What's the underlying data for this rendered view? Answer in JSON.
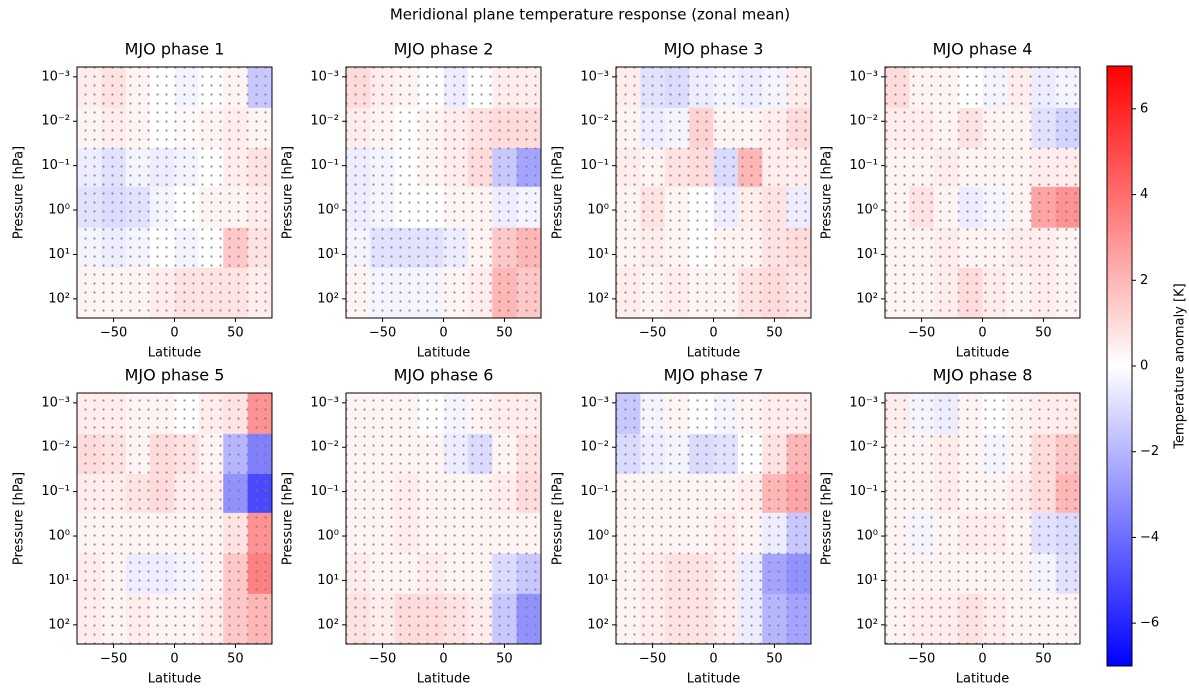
{
  "title": "Meridional plane temperature response (zonal mean)",
  "colorbar": {
    "label": "Temperature anomaly [K]",
    "lim": [
      -7,
      7
    ],
    "ticks": [
      {
        "value": -6,
        "label": "−6"
      },
      {
        "value": -4,
        "label": "−4"
      },
      {
        "value": -2,
        "label": "−2"
      },
      0,
      2,
      4,
      6
    ]
  },
  "chart_data": [
    {
      "type": "heatmap",
      "title": "MJO phase 1",
      "xlabel": "Latitude",
      "ylabel": "Pressure [hPa]",
      "x": [
        -80,
        -60,
        -40,
        -20,
        0,
        20,
        40,
        60,
        80
      ],
      "y": [
        0.0006,
        0.005,
        0.04,
        0.3,
        2.5,
        20,
        270
      ],
      "log_y": true,
      "y_inverted": true,
      "xlim": [
        -80,
        80
      ],
      "ylim": [
        0.0006,
        270
      ],
      "xticks": [
        {
          "value": -50,
          "label": "−50"
        },
        0,
        50
      ],
      "yticks": [
        {
          "value": 0.001,
          "label": "10⁻³"
        },
        {
          "value": 0.01,
          "label": "10⁻²"
        },
        {
          "value": 0.1,
          "label": "10⁻¹"
        },
        {
          "value": 1,
          "label": "10⁰"
        },
        {
          "value": 10,
          "label": "10¹"
        },
        {
          "value": 100,
          "label": "10²"
        }
      ],
      "values": [
        [
          0.5,
          0.8,
          0.3,
          0,
          -0.3,
          0,
          0.3,
          -1.5
        ],
        [
          0.3,
          0.5,
          0.3,
          0,
          0.2,
          0.3,
          0.5,
          0.3
        ],
        [
          -0.5,
          -0.8,
          -0.3,
          -0.5,
          -0.3,
          0,
          0.5,
          0.8
        ],
        [
          -0.8,
          -1,
          -0.8,
          -0.3,
          0,
          0.3,
          0.3,
          0.5
        ],
        [
          -0.3,
          -0.5,
          -0.3,
          0,
          -0.3,
          0,
          1.5,
          0.8
        ],
        [
          0.3,
          0.3,
          0.3,
          0.5,
          0.8,
          0.8,
          0.8,
          0.5
        ]
      ]
    },
    {
      "type": "heatmap",
      "title": "MJO phase 2",
      "xlabel": "Latitude",
      "ylabel": "Pressure [hPa]",
      "x": [
        -80,
        -60,
        -40,
        -20,
        0,
        20,
        40,
        60,
        80
      ],
      "y": [
        0.0006,
        0.005,
        0.04,
        0.3,
        2.5,
        20,
        270
      ],
      "log_y": true,
      "y_inverted": true,
      "xlim": [
        -80,
        80
      ],
      "ylim": [
        0.0006,
        270
      ],
      "xticks": [
        {
          "value": -50,
          "label": "−50"
        },
        0,
        50
      ],
      "yticks": [
        {
          "value": 0.001,
          "label": "10⁻³"
        },
        {
          "value": 0.01,
          "label": "10⁻²"
        },
        {
          "value": 0.1,
          "label": "10⁻¹"
        },
        {
          "value": 1,
          "label": "10⁰"
        },
        {
          "value": 10,
          "label": "10¹"
        },
        {
          "value": 100,
          "label": "10²"
        }
      ],
      "values": [
        [
          1,
          0.5,
          0.3,
          0,
          -0.5,
          0,
          0.5,
          0.5
        ],
        [
          0.5,
          0.3,
          0,
          0.3,
          0.5,
          0.8,
          1,
          1
        ],
        [
          -0.5,
          -0.3,
          0,
          0.3,
          0.5,
          1,
          -1.5,
          -2.5
        ],
        [
          -0.5,
          -0.3,
          0,
          0,
          0.3,
          0.3,
          -0.5,
          -0.3
        ],
        [
          -0.3,
          -0.8,
          -0.8,
          -0.8,
          -0.5,
          0.3,
          1.5,
          2
        ],
        [
          0.3,
          -0.3,
          -0.3,
          -0.3,
          0.3,
          0.5,
          2,
          1.5
        ]
      ]
    },
    {
      "type": "heatmap",
      "title": "MJO phase 3",
      "xlabel": "Latitude",
      "ylabel": "Pressure [hPa]",
      "x": [
        -80,
        -60,
        -40,
        -20,
        0,
        20,
        40,
        60,
        80
      ],
      "y": [
        0.0006,
        0.005,
        0.04,
        0.3,
        2.5,
        20,
        270
      ],
      "log_y": true,
      "y_inverted": true,
      "xlim": [
        -80,
        80
      ],
      "ylim": [
        0.0006,
        270
      ],
      "xticks": [
        {
          "value": -50,
          "label": "−50"
        },
        0,
        50
      ],
      "yticks": [
        {
          "value": 0.001,
          "label": "10⁻³"
        },
        {
          "value": 0.01,
          "label": "10⁻²"
        },
        {
          "value": 0.1,
          "label": "10⁻¹"
        },
        {
          "value": 1,
          "label": "10⁰"
        },
        {
          "value": 10,
          "label": "10¹"
        },
        {
          "value": 100,
          "label": "10²"
        }
      ],
      "values": [
        [
          0.5,
          -0.8,
          -1,
          -0.5,
          -0.3,
          -0.5,
          -0.3,
          0.5
        ],
        [
          0.3,
          -0.5,
          -0.3,
          1.2,
          0.3,
          0.3,
          0.5,
          1
        ],
        [
          0.5,
          0.3,
          0.8,
          1,
          -1,
          2,
          0.5,
          0.5
        ],
        [
          0.3,
          0.8,
          0.3,
          0,
          -0.5,
          0.5,
          0.8,
          -0.5
        ],
        [
          0.3,
          0.5,
          0.3,
          0,
          0.3,
          0.3,
          0.8,
          1
        ],
        [
          0.5,
          0.3,
          0.5,
          0.3,
          0.3,
          0.8,
          1,
          0.8
        ]
      ]
    },
    {
      "type": "heatmap",
      "title": "MJO phase 4",
      "xlabel": "Latitude",
      "ylabel": "Pressure [hPa]",
      "x": [
        -80,
        -60,
        -40,
        -20,
        0,
        20,
        40,
        60,
        80
      ],
      "y": [
        0.0006,
        0.005,
        0.04,
        0.3,
        2.5,
        20,
        270
      ],
      "log_y": true,
      "y_inverted": true,
      "xlim": [
        -80,
        80
      ],
      "ylim": [
        0.0006,
        270
      ],
      "xticks": [
        {
          "value": -50,
          "label": "−50"
        },
        0,
        50
      ],
      "yticks": [
        {
          "value": 0.001,
          "label": "10⁻³"
        },
        {
          "value": 0.01,
          "label": "10⁻²"
        },
        {
          "value": 0.1,
          "label": "10⁻¹"
        },
        {
          "value": 1,
          "label": "10⁰"
        },
        {
          "value": 10,
          "label": "10¹"
        },
        {
          "value": 100,
          "label": "10²"
        }
      ],
      "values": [
        [
          1,
          0.3,
          0.3,
          0,
          -0.3,
          0.5,
          -0.5,
          -0.3
        ],
        [
          0.5,
          0.5,
          0.3,
          0.8,
          0.3,
          0.3,
          -0.8,
          -1.2
        ],
        [
          0.3,
          0.3,
          0.5,
          0.3,
          0.3,
          0.3,
          0.5,
          0.5
        ],
        [
          0.3,
          0.8,
          0.3,
          -0.5,
          -0.3,
          0.3,
          2.5,
          3
        ],
        [
          0.3,
          0.3,
          0.5,
          0.3,
          0.3,
          0.5,
          0.5,
          0.3
        ],
        [
          0.3,
          0.3,
          0.5,
          1,
          0.5,
          0.3,
          0.5,
          0.3
        ]
      ]
    },
    {
      "type": "heatmap",
      "title": "MJO phase 5",
      "xlabel": "Latitude",
      "ylabel": "Pressure [hPa]",
      "x": [
        -80,
        -60,
        -40,
        -20,
        0,
        20,
        40,
        60,
        80
      ],
      "y": [
        0.0006,
        0.005,
        0.04,
        0.3,
        2.5,
        20,
        270
      ],
      "log_y": true,
      "y_inverted": true,
      "xlim": [
        -80,
        80
      ],
      "ylim": [
        0.0006,
        270
      ],
      "xticks": [
        {
          "value": -50,
          "label": "−50"
        },
        0,
        50
      ],
      "yticks": [
        {
          "value": 0.001,
          "label": "10⁻³"
        },
        {
          "value": 0.01,
          "label": "10⁻²"
        },
        {
          "value": 0.1,
          "label": "10⁻¹"
        },
        {
          "value": 1,
          "label": "10⁰"
        },
        {
          "value": 10,
          "label": "10¹"
        },
        {
          "value": 100,
          "label": "10²"
        }
      ],
      "values": [
        [
          0.5,
          0.5,
          0.3,
          0.3,
          0,
          0.5,
          0.8,
          3
        ],
        [
          1,
          0.8,
          0.3,
          1,
          0.8,
          0.3,
          -2,
          -3.5
        ],
        [
          0.5,
          0.5,
          0.8,
          1,
          0.5,
          0.5,
          -3,
          -5
        ],
        [
          0.3,
          0.3,
          0.3,
          0.3,
          0.3,
          0.3,
          0.8,
          3
        ],
        [
          0.5,
          0.3,
          -0.5,
          -0.5,
          -0.3,
          0.3,
          1.5,
          3.5
        ],
        [
          0.5,
          0.3,
          0.5,
          0.3,
          0.3,
          0.5,
          1.5,
          2
        ]
      ]
    },
    {
      "type": "heatmap",
      "title": "MJO phase 6",
      "xlabel": "Latitude",
      "ylabel": "Pressure [hPa]",
      "x": [
        -80,
        -60,
        -40,
        -20,
        0,
        20,
        40,
        60,
        80
      ],
      "y": [
        0.0006,
        0.005,
        0.04,
        0.3,
        2.5,
        20,
        270
      ],
      "log_y": true,
      "y_inverted": true,
      "xlim": [
        -80,
        80
      ],
      "ylim": [
        0.0006,
        270
      ],
      "xticks": [
        {
          "value": -50,
          "label": "−50"
        },
        0,
        50
      ],
      "yticks": [
        {
          "value": 0.001,
          "label": "10⁻³"
        },
        {
          "value": 0.01,
          "label": "10⁻²"
        },
        {
          "value": 0.1,
          "label": "10⁻¹"
        },
        {
          "value": 1,
          "label": "10⁰"
        },
        {
          "value": 10,
          "label": "10¹"
        },
        {
          "value": 100,
          "label": "10²"
        }
      ],
      "values": [
        [
          0.3,
          0.3,
          0.3,
          0,
          -0.3,
          0.3,
          0.5,
          0.5
        ],
        [
          0.3,
          0.3,
          0.3,
          0.3,
          -0.5,
          -1,
          0.3,
          0.8
        ],
        [
          0.3,
          0.3,
          0.5,
          0.3,
          0.3,
          0.3,
          0.5,
          1
        ],
        [
          0.3,
          0.3,
          0.5,
          0.3,
          0.3,
          0.3,
          0.3,
          0.3
        ],
        [
          0.5,
          0.3,
          0.3,
          0.5,
          0.3,
          0.3,
          -1,
          -1.5
        ],
        [
          0.8,
          0.5,
          1,
          1,
          0.8,
          0.5,
          -1.5,
          -3
        ]
      ]
    },
    {
      "type": "heatmap",
      "title": "MJO phase 7",
      "xlabel": "Latitude",
      "ylabel": "Pressure [hPa]",
      "x": [
        -80,
        -60,
        -40,
        -20,
        0,
        20,
        40,
        60,
        80
      ],
      "y": [
        0.0006,
        0.005,
        0.04,
        0.3,
        2.5,
        20,
        270
      ],
      "log_y": true,
      "y_inverted": true,
      "xlim": [
        -80,
        80
      ],
      "ylim": [
        0.0006,
        270
      ],
      "xticks": [
        {
          "value": -50,
          "label": "−50"
        },
        0,
        50
      ],
      "yticks": [
        {
          "value": 0.001,
          "label": "10⁻³"
        },
        {
          "value": 0.01,
          "label": "10⁻²"
        },
        {
          "value": 0.1,
          "label": "10⁻¹"
        },
        {
          "value": 1,
          "label": "10⁰"
        },
        {
          "value": 10,
          "label": "10¹"
        },
        {
          "value": 100,
          "label": "10²"
        }
      ],
      "values": [
        [
          -1.5,
          -0.3,
          0.3,
          0,
          -0.3,
          0.3,
          0.5,
          0.5
        ],
        [
          -1,
          -0.5,
          -0.3,
          -1,
          -0.8,
          0,
          0.8,
          2
        ],
        [
          0.3,
          0.3,
          0.3,
          0.3,
          0.3,
          0.5,
          2,
          2.5
        ],
        [
          0.3,
          0.3,
          0.3,
          0.3,
          0.5,
          0.3,
          -0.5,
          -1.5
        ],
        [
          0.3,
          0.5,
          0.8,
          0.8,
          0.5,
          -0.5,
          -2.5,
          -3
        ],
        [
          0.3,
          0.5,
          0.8,
          0.8,
          0.5,
          -0.5,
          -2,
          -2.5
        ]
      ]
    },
    {
      "type": "heatmap",
      "title": "MJO phase 8",
      "xlabel": "Latitude",
      "ylabel": "Pressure [hPa]",
      "x": [
        -80,
        -60,
        -40,
        -20,
        0,
        20,
        40,
        60,
        80
      ],
      "y": [
        0.0006,
        0.005,
        0.04,
        0.3,
        2.5,
        20,
        270
      ],
      "log_y": true,
      "y_inverted": true,
      "xlim": [
        -80,
        80
      ],
      "ylim": [
        0.0006,
        270
      ],
      "xticks": [
        {
          "value": -50,
          "label": "−50"
        },
        0,
        50
      ],
      "yticks": [
        {
          "value": 0.001,
          "label": "10⁻³"
        },
        {
          "value": 0.01,
          "label": "10⁻²"
        },
        {
          "value": 0.1,
          "label": "10⁻¹"
        },
        {
          "value": 1,
          "label": "10⁰"
        },
        {
          "value": 10,
          "label": "10¹"
        },
        {
          "value": 100,
          "label": "10²"
        }
      ],
      "values": [
        [
          0.5,
          -0.3,
          -0.5,
          0.3,
          0,
          0.3,
          0.5,
          0.5
        ],
        [
          0.3,
          0.3,
          0.5,
          0.3,
          -0.3,
          0.3,
          1,
          1.5
        ],
        [
          0.3,
          0.3,
          0.5,
          0.3,
          0.3,
          0.5,
          1,
          2
        ],
        [
          0.3,
          -0.3,
          0.3,
          0.5,
          0.5,
          0.3,
          -0.8,
          -1
        ],
        [
          0.3,
          0.3,
          0.3,
          0.3,
          0.3,
          0.3,
          -0.3,
          -0.8
        ],
        [
          0.3,
          0.5,
          0.5,
          0.8,
          0.5,
          0.3,
          0.3,
          0.3
        ]
      ]
    }
  ]
}
